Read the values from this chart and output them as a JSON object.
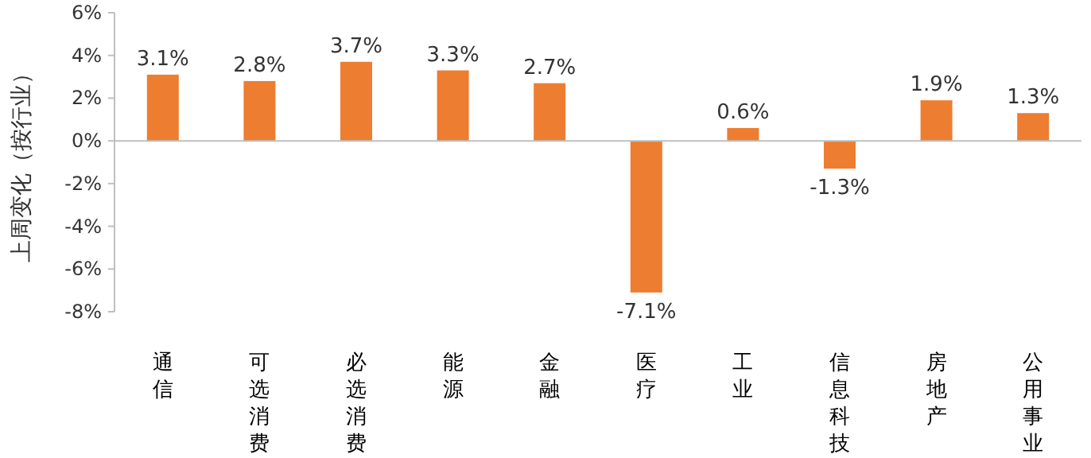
{
  "chart_data": {
    "type": "bar",
    "ylabel": "上周变化（按行业）",
    "categories": [
      "通信",
      "可选消费",
      "必选消费",
      "能源",
      "金融",
      "医疗",
      "工业",
      "信息科技",
      "房地产",
      "公用事业"
    ],
    "values": [
      3.1,
      2.8,
      3.7,
      3.3,
      2.7,
      -7.1,
      0.6,
      -1.3,
      1.9,
      1.3
    ],
    "color": "#ed7d31",
    "ylim": [
      -8,
      6
    ],
    "yticks": [
      {
        "value": -8,
        "label": "-8%"
      },
      {
        "value": -6,
        "label": "-6%"
      },
      {
        "value": -4,
        "label": "-4%"
      },
      {
        "value": -2,
        "label": "-2%"
      },
      {
        "value": 0,
        "label": "0%"
      },
      {
        "value": 2,
        "label": "2%"
      },
      {
        "value": 4,
        "label": "4%"
      },
      {
        "value": 6,
        "label": "6%"
      }
    ],
    "value_labels": [
      "3.1%",
      "2.8%",
      "3.7%",
      "3.3%",
      "2.7%",
      "-7.1%",
      "0.6%",
      "-1.3%",
      "1.9%",
      "1.3%"
    ]
  }
}
